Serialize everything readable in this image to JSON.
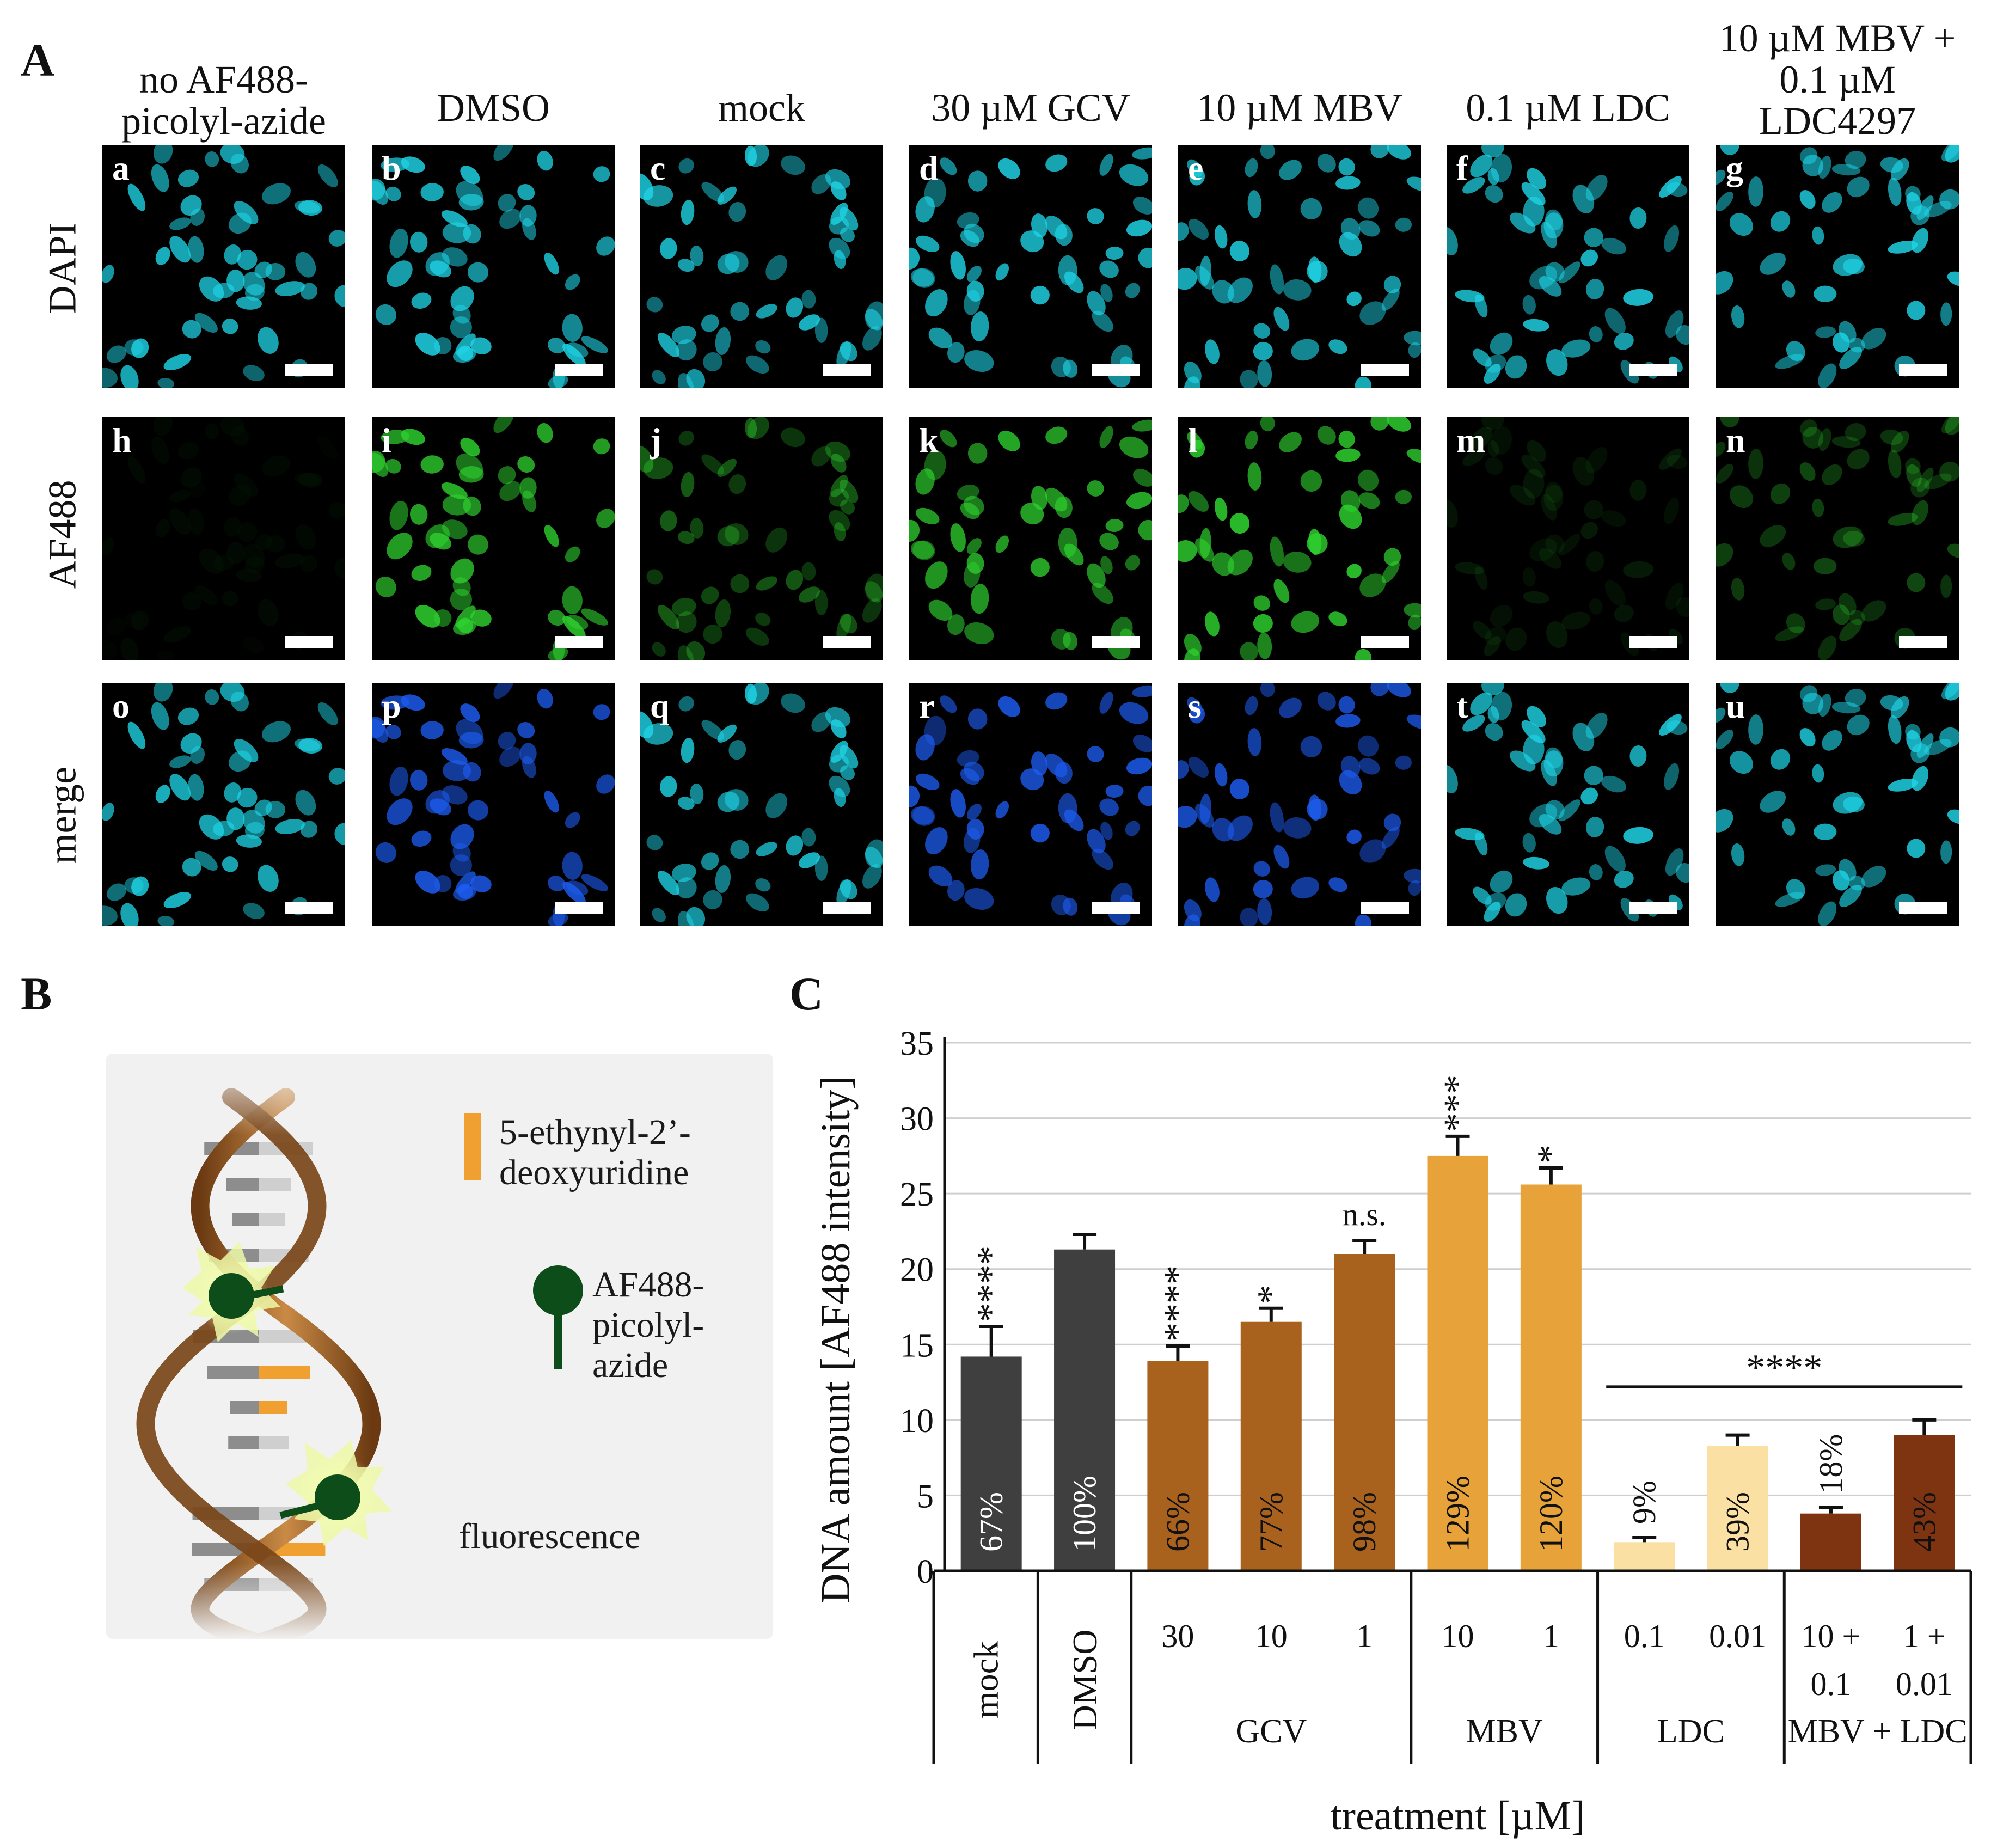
{
  "panel_labels": {
    "a": "A",
    "b": "B",
    "c": "C"
  },
  "panel_a": {
    "columns": [
      {
        "header_lines": [
          "no AF488-",
          "picolyl-azide"
        ],
        "tiles": [
          "a",
          "h",
          "o"
        ]
      },
      {
        "header_lines": [
          "DMSO"
        ],
        "tiles": [
          "b",
          "i",
          "p"
        ]
      },
      {
        "header_lines": [
          "mock"
        ],
        "tiles": [
          "c",
          "j",
          "q"
        ]
      },
      {
        "header_lines": [
          "30 µM GCV"
        ],
        "tiles": [
          "d",
          "k",
          "r"
        ]
      },
      {
        "header_lines": [
          "10 µM MBV"
        ],
        "tiles": [
          "e",
          "l",
          "s"
        ]
      },
      {
        "header_lines": [
          "0.1 µM LDC"
        ],
        "tiles": [
          "f",
          "m",
          "t"
        ]
      },
      {
        "header_lines": [
          "10 µM MBV +",
          "0.1 µM",
          "LDC4297"
        ],
        "tiles": [
          "g",
          "n",
          "u"
        ]
      }
    ],
    "rows": [
      {
        "label": "DAPI",
        "channel": "dapi"
      },
      {
        "label": "AF488",
        "channel": "af488"
      },
      {
        "label": "merge",
        "channel": "merge"
      }
    ],
    "signal_levels": {
      "af488": [
        0.0,
        0.85,
        0.45,
        0.8,
        0.9,
        0.12,
        0.35
      ],
      "merge_blue": [
        0.0,
        0.85,
        0.45,
        0.85,
        0.85,
        0.12,
        0.35
      ]
    },
    "colors": {
      "dapi": "#1fd4e6",
      "af488": "#2fd12f",
      "merge_blue": "#1d5cf0"
    }
  },
  "panel_b": {
    "legend_edu": [
      "5-ethynyl-2’-",
      "deoxyuridine"
    ],
    "legend_af488": [
      "AF488-",
      "picolyl-",
      "azide"
    ],
    "fluorescence_label": "fluorescence",
    "colors": {
      "edu": "#f0a030",
      "probe": "#0d4d1a",
      "helix": "#9a5a20"
    }
  },
  "chart_data": {
    "type": "bar",
    "ylabel": "DNA amount [AF488 intensity]",
    "xlabel": "treatment [µM]",
    "ylim": [
      0,
      35
    ],
    "yticks": [
      "0",
      "5",
      "10",
      "15",
      "20",
      "25",
      "30",
      "35"
    ],
    "grid": true,
    "bars": [
      {
        "group": "mock",
        "dose": "",
        "value": 14.2,
        "error": 2.0,
        "percent": "67%",
        "sig": "****",
        "color": "#3f3f3f",
        "pct_color": "#ffffff",
        "pct_inside": true
      },
      {
        "group": "DMSO",
        "dose": "",
        "value": 21.3,
        "error": 1.0,
        "percent": "100%",
        "sig": "",
        "color": "#3f3f3f",
        "pct_color": "#ffffff",
        "pct_inside": true
      },
      {
        "group": "GCV",
        "dose": "30",
        "value": 13.9,
        "error": 1.0,
        "percent": "66%",
        "sig": "****",
        "color": "#a8621e",
        "pct_color": "#111111",
        "pct_inside": true
      },
      {
        "group": "GCV",
        "dose": "10",
        "value": 16.5,
        "error": 0.9,
        "percent": "77%",
        "sig": "*",
        "color": "#a8621e",
        "pct_color": "#111111",
        "pct_inside": true
      },
      {
        "group": "GCV",
        "dose": "1",
        "value": 21.0,
        "error": 0.9,
        "percent": "98%",
        "sig": "n.s.",
        "color": "#a8621e",
        "pct_color": "#111111",
        "pct_inside": true
      },
      {
        "group": "MBV",
        "dose": "10",
        "value": 27.5,
        "error": 1.3,
        "percent": "129%",
        "sig": "***",
        "color": "#e8a23a",
        "pct_color": "#111111",
        "pct_inside": true
      },
      {
        "group": "MBV",
        "dose": "1",
        "value": 25.6,
        "error": 1.1,
        "percent": "120%",
        "sig": "*",
        "color": "#e8a23a",
        "pct_color": "#111111",
        "pct_inside": true
      },
      {
        "group": "LDC",
        "dose": "0.1",
        "value": 1.9,
        "error": 0.3,
        "percent": "9%",
        "sig": "",
        "color": "#fbe0a3",
        "pct_color": "#111111",
        "pct_inside": false
      },
      {
        "group": "LDC",
        "dose": "0.01",
        "value": 8.3,
        "error": 0.7,
        "percent": "39%",
        "sig": "",
        "color": "#fbe0a3",
        "pct_color": "#111111",
        "pct_inside": true
      },
      {
        "group": "MBV + LDC",
        "dose": "10 + 0.1",
        "value": 3.8,
        "error": 0.4,
        "percent": "18%",
        "sig": "",
        "color": "#7e3311",
        "pct_color": "#111111",
        "pct_inside": false
      },
      {
        "group": "MBV + LDC",
        "dose": "1 + 0.01",
        "value": 9.0,
        "error": 1.0,
        "percent": "43%",
        "sig": "",
        "color": "#7e3311",
        "pct_color": "#111111",
        "pct_inside": true
      }
    ],
    "groups": [
      {
        "label": "mock",
        "rotated": true
      },
      {
        "label": "DMSO",
        "rotated": true
      },
      {
        "label": "GCV",
        "rotated": false
      },
      {
        "label": "MBV",
        "rotated": false
      },
      {
        "label": "LDC",
        "rotated": false
      },
      {
        "label": "MBV + LDC",
        "rotated": false
      }
    ],
    "bracket": {
      "label": "****",
      "from_bar": 7,
      "to_bar": 10,
      "value": 12.2
    }
  }
}
